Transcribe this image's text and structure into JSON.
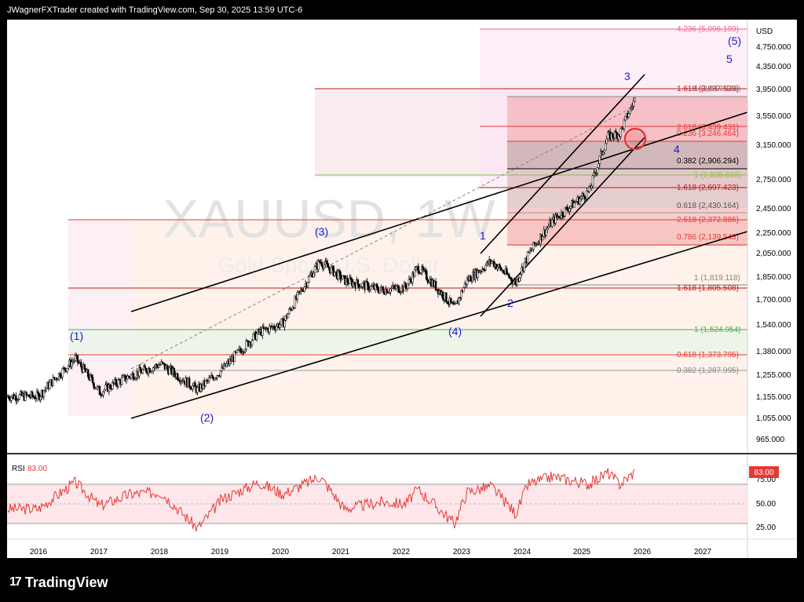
{
  "header": {
    "text": "JWagnerFXTrader created with TradingView.com, Sep 30, 2025 13:59 UTC-6"
  },
  "brand": {
    "logo": "17",
    "name": "TradingView"
  },
  "watermark": {
    "symbol": "XAUUSD, 1W",
    "description": "Gold Spot / U.S. Dollar"
  },
  "price_axis": {
    "currency": "USD",
    "ticks": [
      "4,750.000",
      "4,350.000",
      "3,950.000",
      "3,550.000",
      "3,150.000",
      "2,750.000",
      "2,450.000",
      "2,250.000",
      "2,050.000",
      "1,850.000",
      "1,700.000",
      "1,540.000",
      "1,380.000",
      "1,255.000",
      "1,155.000",
      "1,055.000",
      "965.000"
    ]
  },
  "rsi": {
    "label": "RSI",
    "value": "83.00",
    "badge": "83.00",
    "ticks": [
      "75.00",
      "50.00",
      "25.00"
    ]
  },
  "time_axis": {
    "ticks": [
      "2016",
      "2017",
      "2018",
      "2019",
      "2020",
      "2021",
      "2022",
      "2023",
      "2024",
      "2025",
      "2026",
      "2027"
    ]
  },
  "fib_labels": [
    {
      "text": "4.236 (5,096.199)",
      "color": "#f06292"
    },
    {
      "text": "1.618 (3,887.538)",
      "color": "#b71c1c"
    },
    {
      "text": "1 (3,917.148)",
      "color": "#888888"
    },
    {
      "text": "2.618 (3,439.431)",
      "color": "#e53935"
    },
    {
      "text": "0.236 (3,246.464)",
      "color": "#e53935"
    },
    {
      "text": "0.382 (2,906.294)",
      "color": "#000000"
    },
    {
      "text": "1 (2,835.616)",
      "color": "#8bc34a"
    },
    {
      "text": "1.618 (2,697.423)",
      "color": "#b71c1c"
    },
    {
      "text": "0.618 (2,430.164)",
      "color": "#555555"
    },
    {
      "text": "2.618 (2,372.886)",
      "color": "#e53935"
    },
    {
      "text": "0.786 (2,139.543)",
      "color": "#e53935"
    },
    {
      "text": "1 (1,819.118)",
      "color": "#888888"
    },
    {
      "text": "1.618 (1,805.508)",
      "color": "#b71c1c"
    },
    {
      "text": "1 (1,524.954)",
      "color": "#4caf50"
    },
    {
      "text": "0.618 (1,373.795)",
      "color": "#e53935"
    },
    {
      "text": "0.382 (1,287.995)",
      "color": "#888888"
    }
  ],
  "wave_labels": [
    {
      "text": "(1)"
    },
    {
      "text": "(2)"
    },
    {
      "text": "(3)"
    },
    {
      "text": "(4)"
    },
    {
      "text": "(5)"
    },
    {
      "text": "1"
    },
    {
      "text": "2"
    },
    {
      "text": "3"
    },
    {
      "text": "4"
    },
    {
      "text": "5"
    }
  ],
  "colors": {
    "wave": "#1a1acc",
    "candle": "#000000",
    "rsi_line": "#e53935",
    "rsi_badge": "#e53935",
    "fib_red": "#c62828",
    "fib_green": "#8bc34a"
  },
  "chart_data": {
    "type": "candlestick",
    "symbol": "XAUUSD",
    "timeframe": "1W",
    "x": [
      "2016",
      "2016.6",
      "2017",
      "2017.5",
      "2018",
      "2018.6",
      "2019",
      "2019.6",
      "2020",
      "2020.6",
      "2021",
      "2021.6",
      "2022",
      "2022.2",
      "2022.8",
      "2023",
      "2023.4",
      "2023.8",
      "2024",
      "2024.4",
      "2025",
      "2025.3",
      "2025.5",
      "2025.75"
    ],
    "close_approx": [
      1160,
      1350,
      1180,
      1260,
      1320,
      1190,
      1290,
      1500,
      1560,
      2000,
      1850,
      1780,
      1800,
      1950,
      1650,
      1850,
      2000,
      1830,
      2050,
      2350,
      2650,
      3300,
      3350,
      3850
    ],
    "ylim": [
      950,
      5200
    ],
    "y_scale": "log",
    "rsi": {
      "x": [
        "2016",
        "2016.6",
        "2017",
        "2017.5",
        "2018",
        "2018.6",
        "2019",
        "2019.6",
        "2020",
        "2020.6",
        "2021",
        "2021.6",
        "2022",
        "2022.2",
        "2022.8",
        "2023",
        "2023.4",
        "2023.8",
        "2024",
        "2024.4",
        "2025",
        "2025.3",
        "2025.5",
        "2025.75"
      ],
      "values": [
        45,
        72,
        48,
        60,
        62,
        25,
        55,
        72,
        60,
        78,
        45,
        52,
        50,
        65,
        30,
        62,
        68,
        40,
        70,
        78,
        70,
        82,
        70,
        83
      ],
      "ylim": [
        10,
        90
      ],
      "levels": [
        70,
        50,
        30
      ]
    }
  }
}
